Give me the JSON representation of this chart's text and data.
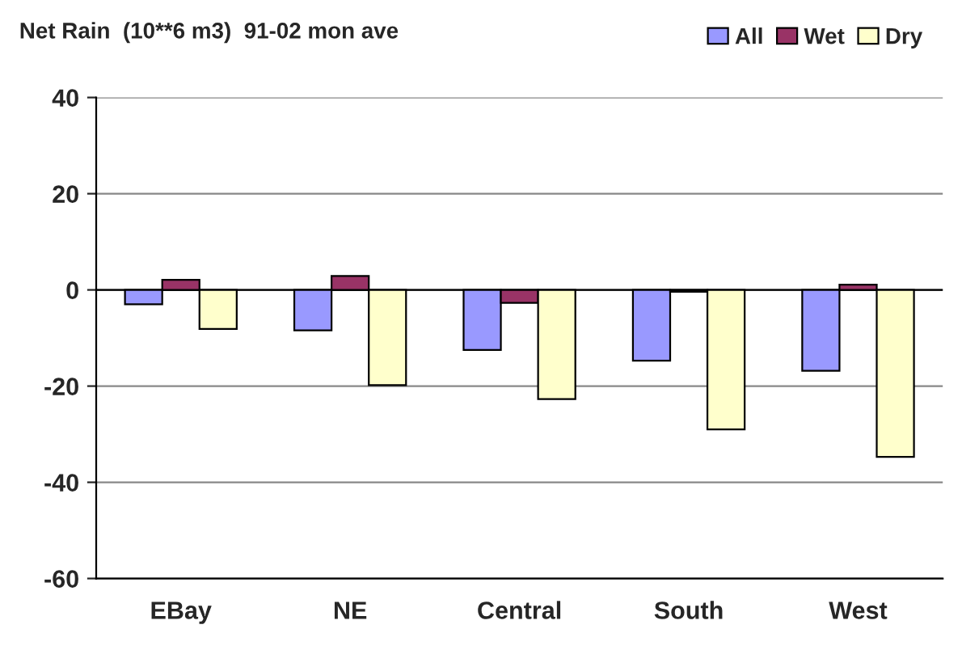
{
  "chart_data": {
    "type": "bar",
    "title": "Net Rain  (10**6 m3)  91-02 mon ave",
    "categories": [
      "EBay",
      "NE",
      "Central",
      "South",
      "West"
    ],
    "series": [
      {
        "name": "All",
        "color": "#9999ff",
        "values": [
          -3.0,
          -8.4,
          -12.5,
          -14.7,
          -16.8
        ]
      },
      {
        "name": "Wet",
        "color": "#993366",
        "values": [
          2.1,
          2.9,
          -2.7,
          -0.4,
          1.1
        ]
      },
      {
        "name": "Dry",
        "color": "#ffffcc",
        "values": [
          -8.1,
          -19.8,
          -22.7,
          -29.0,
          -34.7
        ]
      }
    ],
    "ylim": [
      -60,
      40
    ],
    "yticks": [
      -60,
      -40,
      -20,
      0,
      20,
      40
    ],
    "grid": "y",
    "legend": "top right"
  }
}
